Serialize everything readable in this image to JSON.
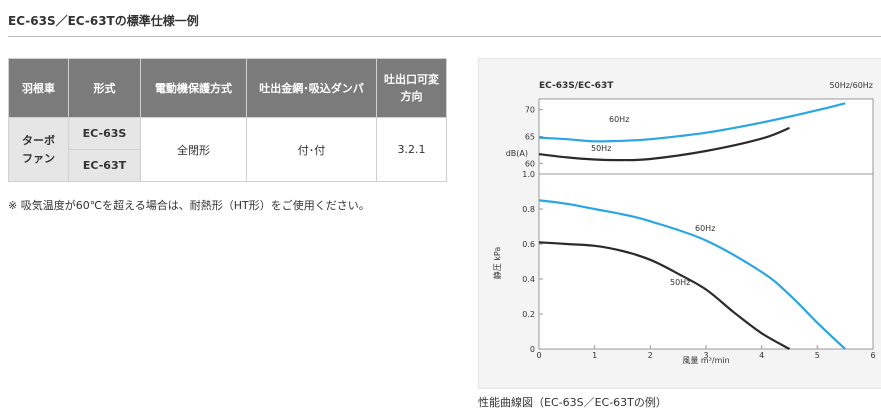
{
  "page": {
    "title": "EC-63S／EC-63Tの標準仕様一例"
  },
  "spec_table": {
    "headers": [
      "羽根車",
      "形式",
      "電動機保護方式",
      "吐出金網･吸込ダンパ",
      "吐出口可変方向"
    ],
    "impeller": "ターボファン",
    "models": [
      "EC-63S",
      "EC-63T"
    ],
    "protection": "全閉形",
    "mesh_damper": "付･付",
    "outlet_directions": "3.2.1"
  },
  "footnote": "※ 吸気温度が60℃を超える場合は、耐熱形（HT形）をご使用ください。",
  "chart_data": {
    "type": "line",
    "title": "EC-63S/EC-63T",
    "legend_note": "50Hz/60Hz",
    "xlabel": "風量 m³/min",
    "ylabel_noise": "dB(A)",
    "ylabel_pressure": "静圧 kPa",
    "xlim": [
      0,
      6
    ],
    "x_ticks": [
      "0",
      "1",
      "2",
      "3",
      "4",
      "5",
      "6"
    ],
    "noise_ylim": [
      58,
      72
    ],
    "noise_ticks": [
      "70",
      "65",
      "60"
    ],
    "pressure_ylim": [
      0,
      1.0
    ],
    "pressure_ticks": [
      "1.0",
      "0.8",
      "0.6",
      "0.4",
      "0.2",
      "0"
    ],
    "series": [
      {
        "name": "60Hz",
        "kind": "noise",
        "color": "#29a6e3",
        "x": [
          0,
          0.5,
          1.0,
          1.5,
          2.0,
          3.0,
          4.0,
          5.0,
          5.5
        ],
        "y": [
          64.8,
          64.5,
          64.1,
          64.2,
          64.5,
          65.7,
          67.6,
          69.9,
          71.2
        ]
      },
      {
        "name": "50Hz",
        "kind": "noise",
        "color": "#2b2b2b",
        "x": [
          0,
          0.5,
          1.0,
          1.5,
          2.0,
          3.0,
          4.0,
          4.5
        ],
        "y": [
          61.7,
          61.1,
          60.7,
          60.6,
          60.8,
          62.3,
          64.6,
          66.6
        ]
      },
      {
        "name": "60Hz",
        "kind": "pressure",
        "color": "#29a6e3",
        "x": [
          0,
          0.5,
          1.0,
          1.5,
          2.0,
          3.0,
          4.0,
          4.5,
          5.0,
          5.5
        ],
        "y": [
          0.85,
          0.83,
          0.8,
          0.77,
          0.73,
          0.62,
          0.44,
          0.31,
          0.15,
          0.0
        ]
      },
      {
        "name": "50Hz",
        "kind": "pressure",
        "color": "#2b2b2b",
        "x": [
          0,
          0.5,
          1.0,
          1.5,
          2.0,
          2.5,
          3.0,
          3.5,
          4.0,
          4.5
        ],
        "y": [
          0.61,
          0.6,
          0.59,
          0.56,
          0.51,
          0.43,
          0.34,
          0.21,
          0.09,
          0.0
        ]
      }
    ],
    "curve_labels": {
      "noise_60": "60Hz",
      "noise_50": "50Hz",
      "pressure_60": "60Hz",
      "pressure_50": "50Hz"
    }
  },
  "caption": "性能曲線図（EC-63S／EC-63Tの例）"
}
